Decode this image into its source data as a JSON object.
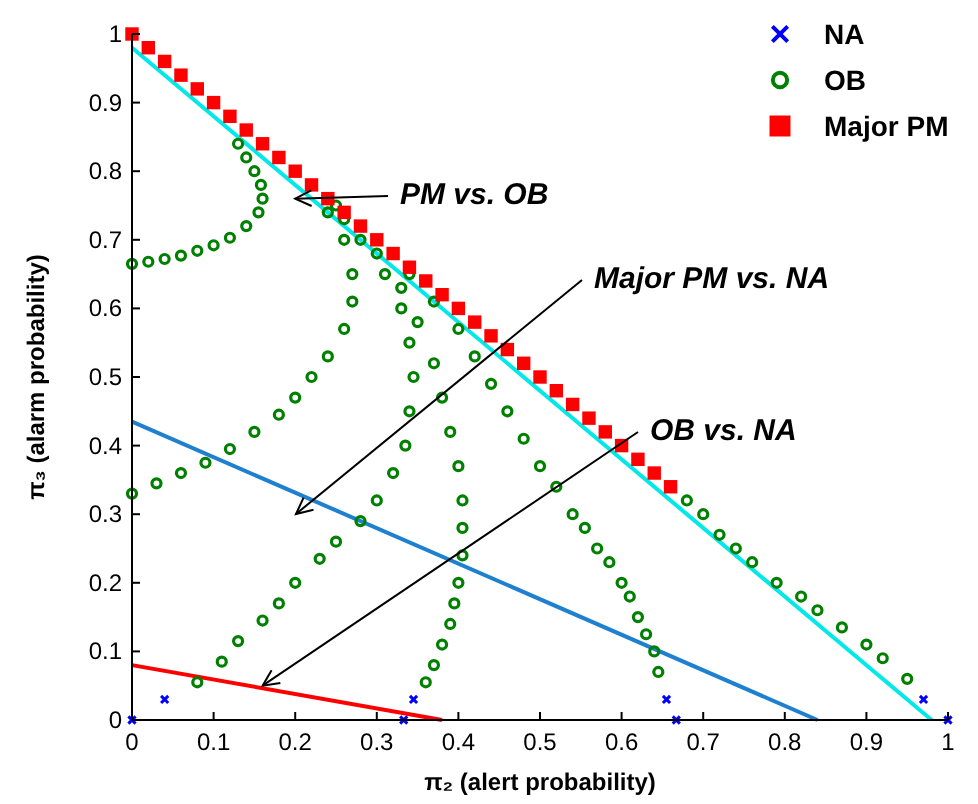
{
  "chart_data": {
    "type": "scatter",
    "xlabel": "π₂ (alert probability)",
    "ylabel": "π₃ (alarm probability)",
    "xlim": [
      0,
      1
    ],
    "ylim": [
      0,
      1
    ],
    "xticks": [
      0,
      0.1,
      0.2,
      0.3,
      0.4,
      0.5,
      0.6,
      0.7,
      0.8,
      0.9,
      1
    ],
    "yticks": [
      0,
      0.1,
      0.2,
      0.3,
      0.4,
      0.5,
      0.6,
      0.7,
      0.8,
      0.9,
      1
    ],
    "grid": false,
    "legend": "top right",
    "series": [
      {
        "type": "line",
        "marker": "none",
        "color": "#ff0000",
        "x": [
          0,
          0.38
        ],
        "values": [
          0.08,
          0
        ]
      },
      {
        "type": "line",
        "marker": "none",
        "color": "#1f80d0",
        "x": [
          0,
          0.84
        ],
        "values": [
          0.435,
          0
        ]
      },
      {
        "type": "line",
        "marker": "none",
        "color": "#00e8e8",
        "x": [
          0,
          0.98
        ],
        "values": [
          0.98,
          0
        ]
      },
      {
        "name": "NA",
        "marker": "cross",
        "color": "#0000ff",
        "x": [
          0,
          0.04,
          0.333,
          0.345,
          0.655,
          0.667,
          0.97,
          1
        ],
        "values": [
          0,
          0.03,
          0,
          0.03,
          0.03,
          0,
          0.03,
          0
        ]
      },
      {
        "name": "OB",
        "marker": "circle",
        "color": "#008000",
        "x": [
          0,
          0.02,
          0.04,
          0.06,
          0.08,
          0.1,
          0.12,
          0.14,
          0.155,
          0.16,
          0.158,
          0.15,
          0.14,
          0.13,
          0,
          0.03,
          0.06,
          0.09,
          0.12,
          0.15,
          0.18,
          0.2,
          0.22,
          0.24,
          0.26,
          0.27,
          0.27,
          0.26,
          0.24,
          0.08,
          0.11,
          0.13,
          0.16,
          0.18,
          0.2,
          0.23,
          0.25,
          0.28,
          0.3,
          0.32,
          0.335,
          0.34,
          0.345,
          0.34,
          0.33,
          0.31,
          0.28,
          0.36,
          0.37,
          0.38,
          0.39,
          0.395,
          0.4,
          0.405,
          0.405,
          0.405,
          0.4,
          0.39,
          0.38,
          0.37,
          0.35,
          0.33,
          0.3,
          0.26,
          0.645,
          0.64,
          0.63,
          0.62,
          0.61,
          0.6,
          0.585,
          0.57,
          0.555,
          0.54,
          0.52,
          0.5,
          0.48,
          0.46,
          0.44,
          0.42,
          0.4,
          0.37,
          0.34,
          0.25,
          0.95,
          0.92,
          0.9,
          0.87,
          0.84,
          0.82,
          0.79,
          0.76,
          0.74,
          0.72,
          0.7,
          0.68
        ],
        "values": [
          0.665,
          0.668,
          0.672,
          0.677,
          0.684,
          0.692,
          0.703,
          0.72,
          0.74,
          0.76,
          0.78,
          0.8,
          0.82,
          0.84,
          0.33,
          0.345,
          0.36,
          0.375,
          0.395,
          0.42,
          0.445,
          0.47,
          0.5,
          0.53,
          0.57,
          0.61,
          0.65,
          0.7,
          0.74,
          0.055,
          0.085,
          0.115,
          0.145,
          0.17,
          0.2,
          0.235,
          0.26,
          0.29,
          0.32,
          0.36,
          0.4,
          0.45,
          0.5,
          0.55,
          0.6,
          0.65,
          0.7,
          0.055,
          0.08,
          0.11,
          0.14,
          0.17,
          0.2,
          0.24,
          0.28,
          0.32,
          0.37,
          0.42,
          0.47,
          0.52,
          0.58,
          0.63,
          0.68,
          0.73,
          0.07,
          0.1,
          0.125,
          0.15,
          0.18,
          0.2,
          0.23,
          0.25,
          0.28,
          0.3,
          0.34,
          0.37,
          0.41,
          0.45,
          0.49,
          0.53,
          0.57,
          0.61,
          0.65,
          0.75,
          0.06,
          0.09,
          0.11,
          0.135,
          0.16,
          0.18,
          0.2,
          0.23,
          0.25,
          0.27,
          0.3,
          0.32
        ]
      },
      {
        "name": "Major PM",
        "marker": "square",
        "color": "#ff0000",
        "x": [
          0,
          0.02,
          0.04,
          0.06,
          0.08,
          0.1,
          0.12,
          0.14,
          0.16,
          0.18,
          0.2,
          0.22,
          0.24,
          0.26,
          0.28,
          0.3,
          0.32,
          0.34,
          0.36,
          0.38,
          0.4,
          0.42,
          0.44,
          0.46,
          0.48,
          0.5,
          0.52,
          0.54,
          0.56,
          0.58,
          0.6,
          0.62,
          0.64,
          0.66
        ],
        "values": [
          1,
          0.98,
          0.96,
          0.94,
          0.92,
          0.9,
          0.88,
          0.86,
          0.84,
          0.82,
          0.8,
          0.78,
          0.76,
          0.74,
          0.72,
          0.7,
          0.68,
          0.66,
          0.64,
          0.62,
          0.6,
          0.58,
          0.56,
          0.54,
          0.52,
          0.5,
          0.48,
          0.46,
          0.44,
          0.42,
          0.4,
          0.38,
          0.36,
          0.34
        ]
      }
    ],
    "annotations": [
      {
        "text": "PM vs. OB",
        "x": 0.2,
        "y": 0.76
      },
      "Major PM vs. NA",
      {
        "text": "OB vs. NA",
        "x": 0.16,
        "y": 0.05
      }
    ]
  }
}
